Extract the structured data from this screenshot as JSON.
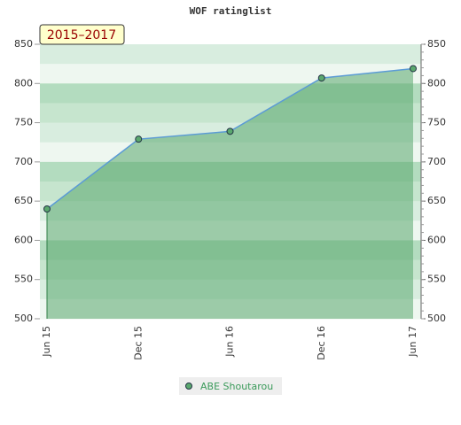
{
  "chart_data": {
    "type": "area",
    "title": "WOF ratinglist",
    "badge": "2015–2017",
    "categories": [
      "Jun 15",
      "Dec 15",
      "Jun 16",
      "Dec 16",
      "Jun 17"
    ],
    "series": [
      {
        "name": "ABE Shoutarou",
        "color": "#5aa86e",
        "values": [
          640,
          729,
          739,
          807,
          819
        ]
      }
    ],
    "ylim": [
      500,
      850
    ],
    "yticks": [
      500,
      550,
      600,
      650,
      700,
      750,
      800,
      850
    ],
    "y2lim": [
      500,
      850
    ],
    "y2ticks": [
      500,
      550,
      600,
      650,
      700,
      750,
      800,
      850
    ]
  }
}
